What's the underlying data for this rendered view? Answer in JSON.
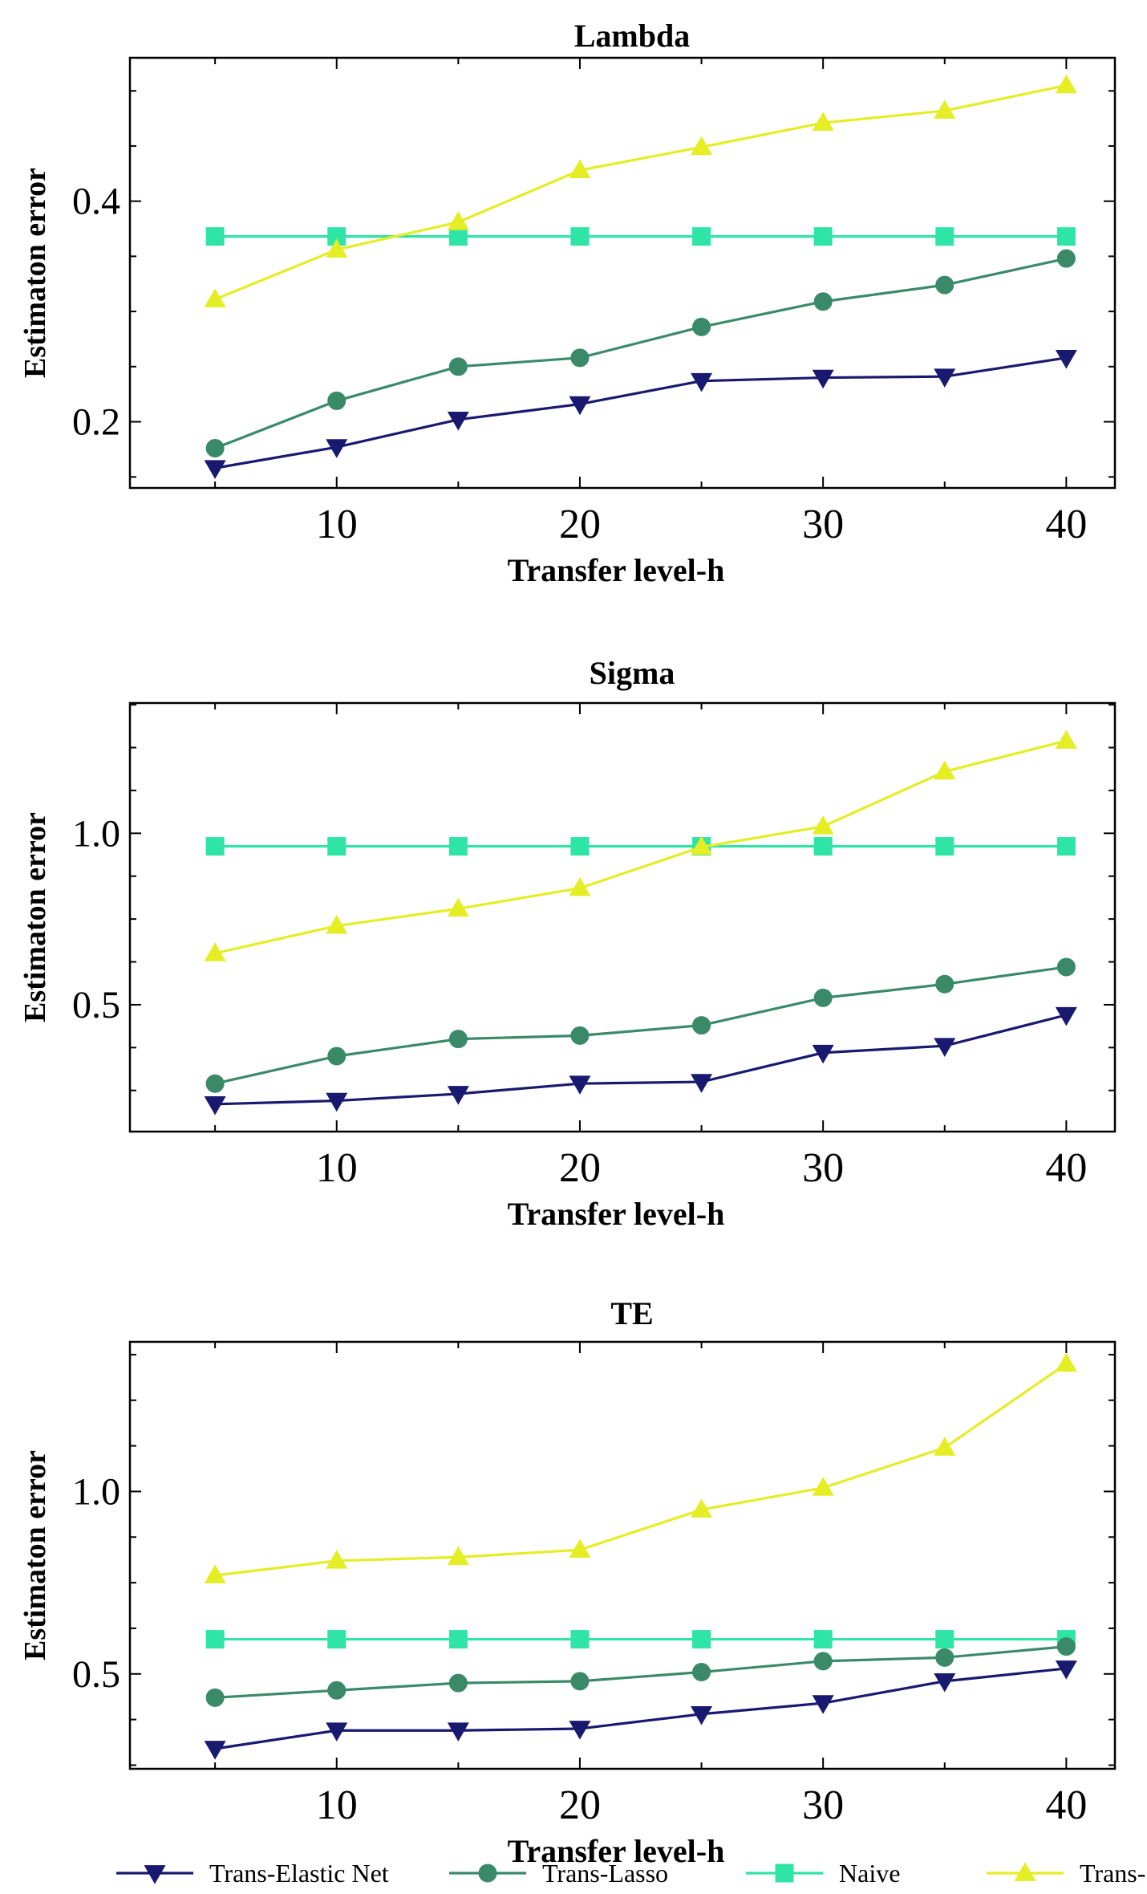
{
  "chart_data": [
    {
      "type": "line",
      "title": "Lambda",
      "xlabel": "Transfer level-h",
      "ylabel": "Estimaton error",
      "x": [
        5,
        10,
        15,
        20,
        25,
        30,
        35,
        40
      ],
      "xlim": [
        1.5,
        42
      ],
      "ylim": [
        0.14,
        0.53
      ],
      "xticks": [
        10,
        20,
        30,
        40
      ],
      "yticks": [
        0.2,
        0.4
      ],
      "ytick_labels": [
        "0.2",
        "0.4"
      ],
      "grid": false,
      "series": [
        {
          "name": "Trans-Elastic Net",
          "values": [
            0.158,
            0.177,
            0.202,
            0.216,
            0.237,
            0.24,
            0.241,
            0.258
          ]
        },
        {
          "name": "Trans-Lasso",
          "values": [
            0.176,
            0.219,
            0.25,
            0.258,
            0.286,
            0.309,
            0.324,
            0.348
          ]
        },
        {
          "name": "Naive",
          "values": [
            0.368,
            0.368,
            0.368,
            0.368,
            0.368,
            0.368,
            0.368,
            0.368
          ]
        },
        {
          "name": "Trans-SFA",
          "values": [
            0.311,
            0.356,
            0.381,
            0.428,
            0.449,
            0.471,
            0.482,
            0.505
          ]
        }
      ]
    },
    {
      "type": "line",
      "title": "Sigma",
      "xlabel": "Transfer level-h",
      "ylabel": "Estimaton error",
      "x": [
        5,
        10,
        15,
        20,
        25,
        30,
        35,
        40
      ],
      "xlim": [
        1.5,
        42
      ],
      "ylim": [
        0.13,
        1.38
      ],
      "xticks": [
        10,
        20,
        30,
        40
      ],
      "yticks": [
        0.5,
        1.0
      ],
      "ytick_labels": [
        "0.5",
        "1.0"
      ],
      "grid": false,
      "series": [
        {
          "name": "Trans-Elastic Net",
          "values": [
            0.21,
            0.22,
            0.24,
            0.27,
            0.275,
            0.36,
            0.38,
            0.47
          ]
        },
        {
          "name": "Trans-Lasso",
          "values": [
            0.27,
            0.35,
            0.4,
            0.41,
            0.44,
            0.52,
            0.56,
            0.61
          ]
        },
        {
          "name": "Naive",
          "values": [
            0.962,
            0.962,
            0.962,
            0.962,
            0.962,
            0.962,
            0.962,
            0.962
          ]
        },
        {
          "name": "Trans-SFA",
          "values": [
            0.65,
            0.73,
            0.78,
            0.84,
            0.96,
            1.02,
            1.18,
            1.27
          ]
        }
      ]
    },
    {
      "type": "line",
      "title": "TE",
      "xlabel": "Transfer level-h",
      "ylabel": "Estimaton error",
      "x": [
        5,
        10,
        15,
        20,
        25,
        30,
        35,
        40
      ],
      "xlim": [
        1.5,
        42
      ],
      "ylim": [
        0.24,
        1.41
      ],
      "xticks": [
        10,
        20,
        30,
        40
      ],
      "yticks": [
        0.5,
        1.0
      ],
      "ytick_labels": [
        "0.5",
        "1.0"
      ],
      "grid": false,
      "series": [
        {
          "name": "Trans-Elastic Net",
          "values": [
            0.295,
            0.345,
            0.345,
            0.35,
            0.39,
            0.42,
            0.48,
            0.515
          ]
        },
        {
          "name": "Trans-Lasso",
          "values": [
            0.435,
            0.455,
            0.475,
            0.48,
            0.505,
            0.535,
            0.545,
            0.575
          ]
        },
        {
          "name": "Naive",
          "values": [
            0.595,
            0.595,
            0.595,
            0.595,
            0.595,
            0.595,
            0.595,
            0.595
          ]
        },
        {
          "name": "Trans-SFA",
          "values": [
            0.77,
            0.81,
            0.82,
            0.84,
            0.95,
            1.01,
            1.12,
            1.35
          ]
        }
      ]
    }
  ],
  "legend": {
    "placement": "bottom",
    "entries": [
      {
        "name": "Trans-Elastic Net",
        "color": "#191970",
        "marker": "triangle-down"
      },
      {
        "name": "Trans-Lasso",
        "color": "#3a8a6a",
        "marker": "circle"
      },
      {
        "name": "Naive",
        "color": "#2ee5a6",
        "marker": "square"
      },
      {
        "name": "Trans-SFA",
        "color": "#e5ed25",
        "marker": "triangle-up"
      }
    ]
  }
}
